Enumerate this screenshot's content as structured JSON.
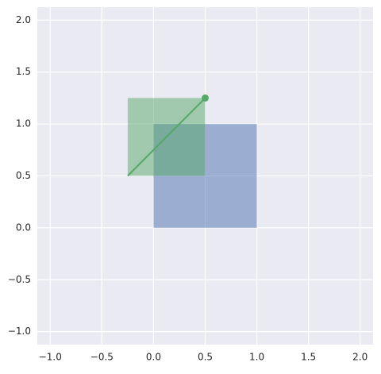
{
  "chart_data": {
    "type": "patches",
    "xlim": [
      -1.125,
      2.125
    ],
    "ylim": [
      -1.125,
      2.125
    ],
    "xticks": [
      {
        "value": -1,
        "label": "−1.0"
      },
      {
        "value": -0.5,
        "label": "−0.5"
      },
      {
        "value": 0,
        "label": "0.0"
      },
      0.5,
      {
        "value": 1,
        "label": "1.0"
      },
      1.5,
      {
        "value": 2,
        "label": "2.0"
      }
    ],
    "yticks": [
      {
        "value": -1,
        "label": "−1.0"
      },
      {
        "value": -0.5,
        "label": "−0.5"
      },
      {
        "value": 0,
        "label": "0.0"
      },
      0.5,
      {
        "value": 1,
        "label": "1.0"
      },
      1.5,
      {
        "value": 2,
        "label": "2.0"
      }
    ],
    "grid": true,
    "patches": [
      {
        "x": 0,
        "y": 0,
        "width": 1,
        "height": 1,
        "color": "#4c72b0",
        "alpha": 0.5
      },
      {
        "x": -0.25,
        "y": 0.5,
        "width": 0.75,
        "height": 0.75,
        "color": "#55a868",
        "alpha": 0.5
      }
    ],
    "line": {
      "x": [
        -0.25,
        0.5
      ],
      "y": [
        0.5,
        1.25
      ],
      "color": "#55a868"
    },
    "marker": {
      "x": 0.5,
      "y": 1.25,
      "color": "#55a868"
    }
  }
}
